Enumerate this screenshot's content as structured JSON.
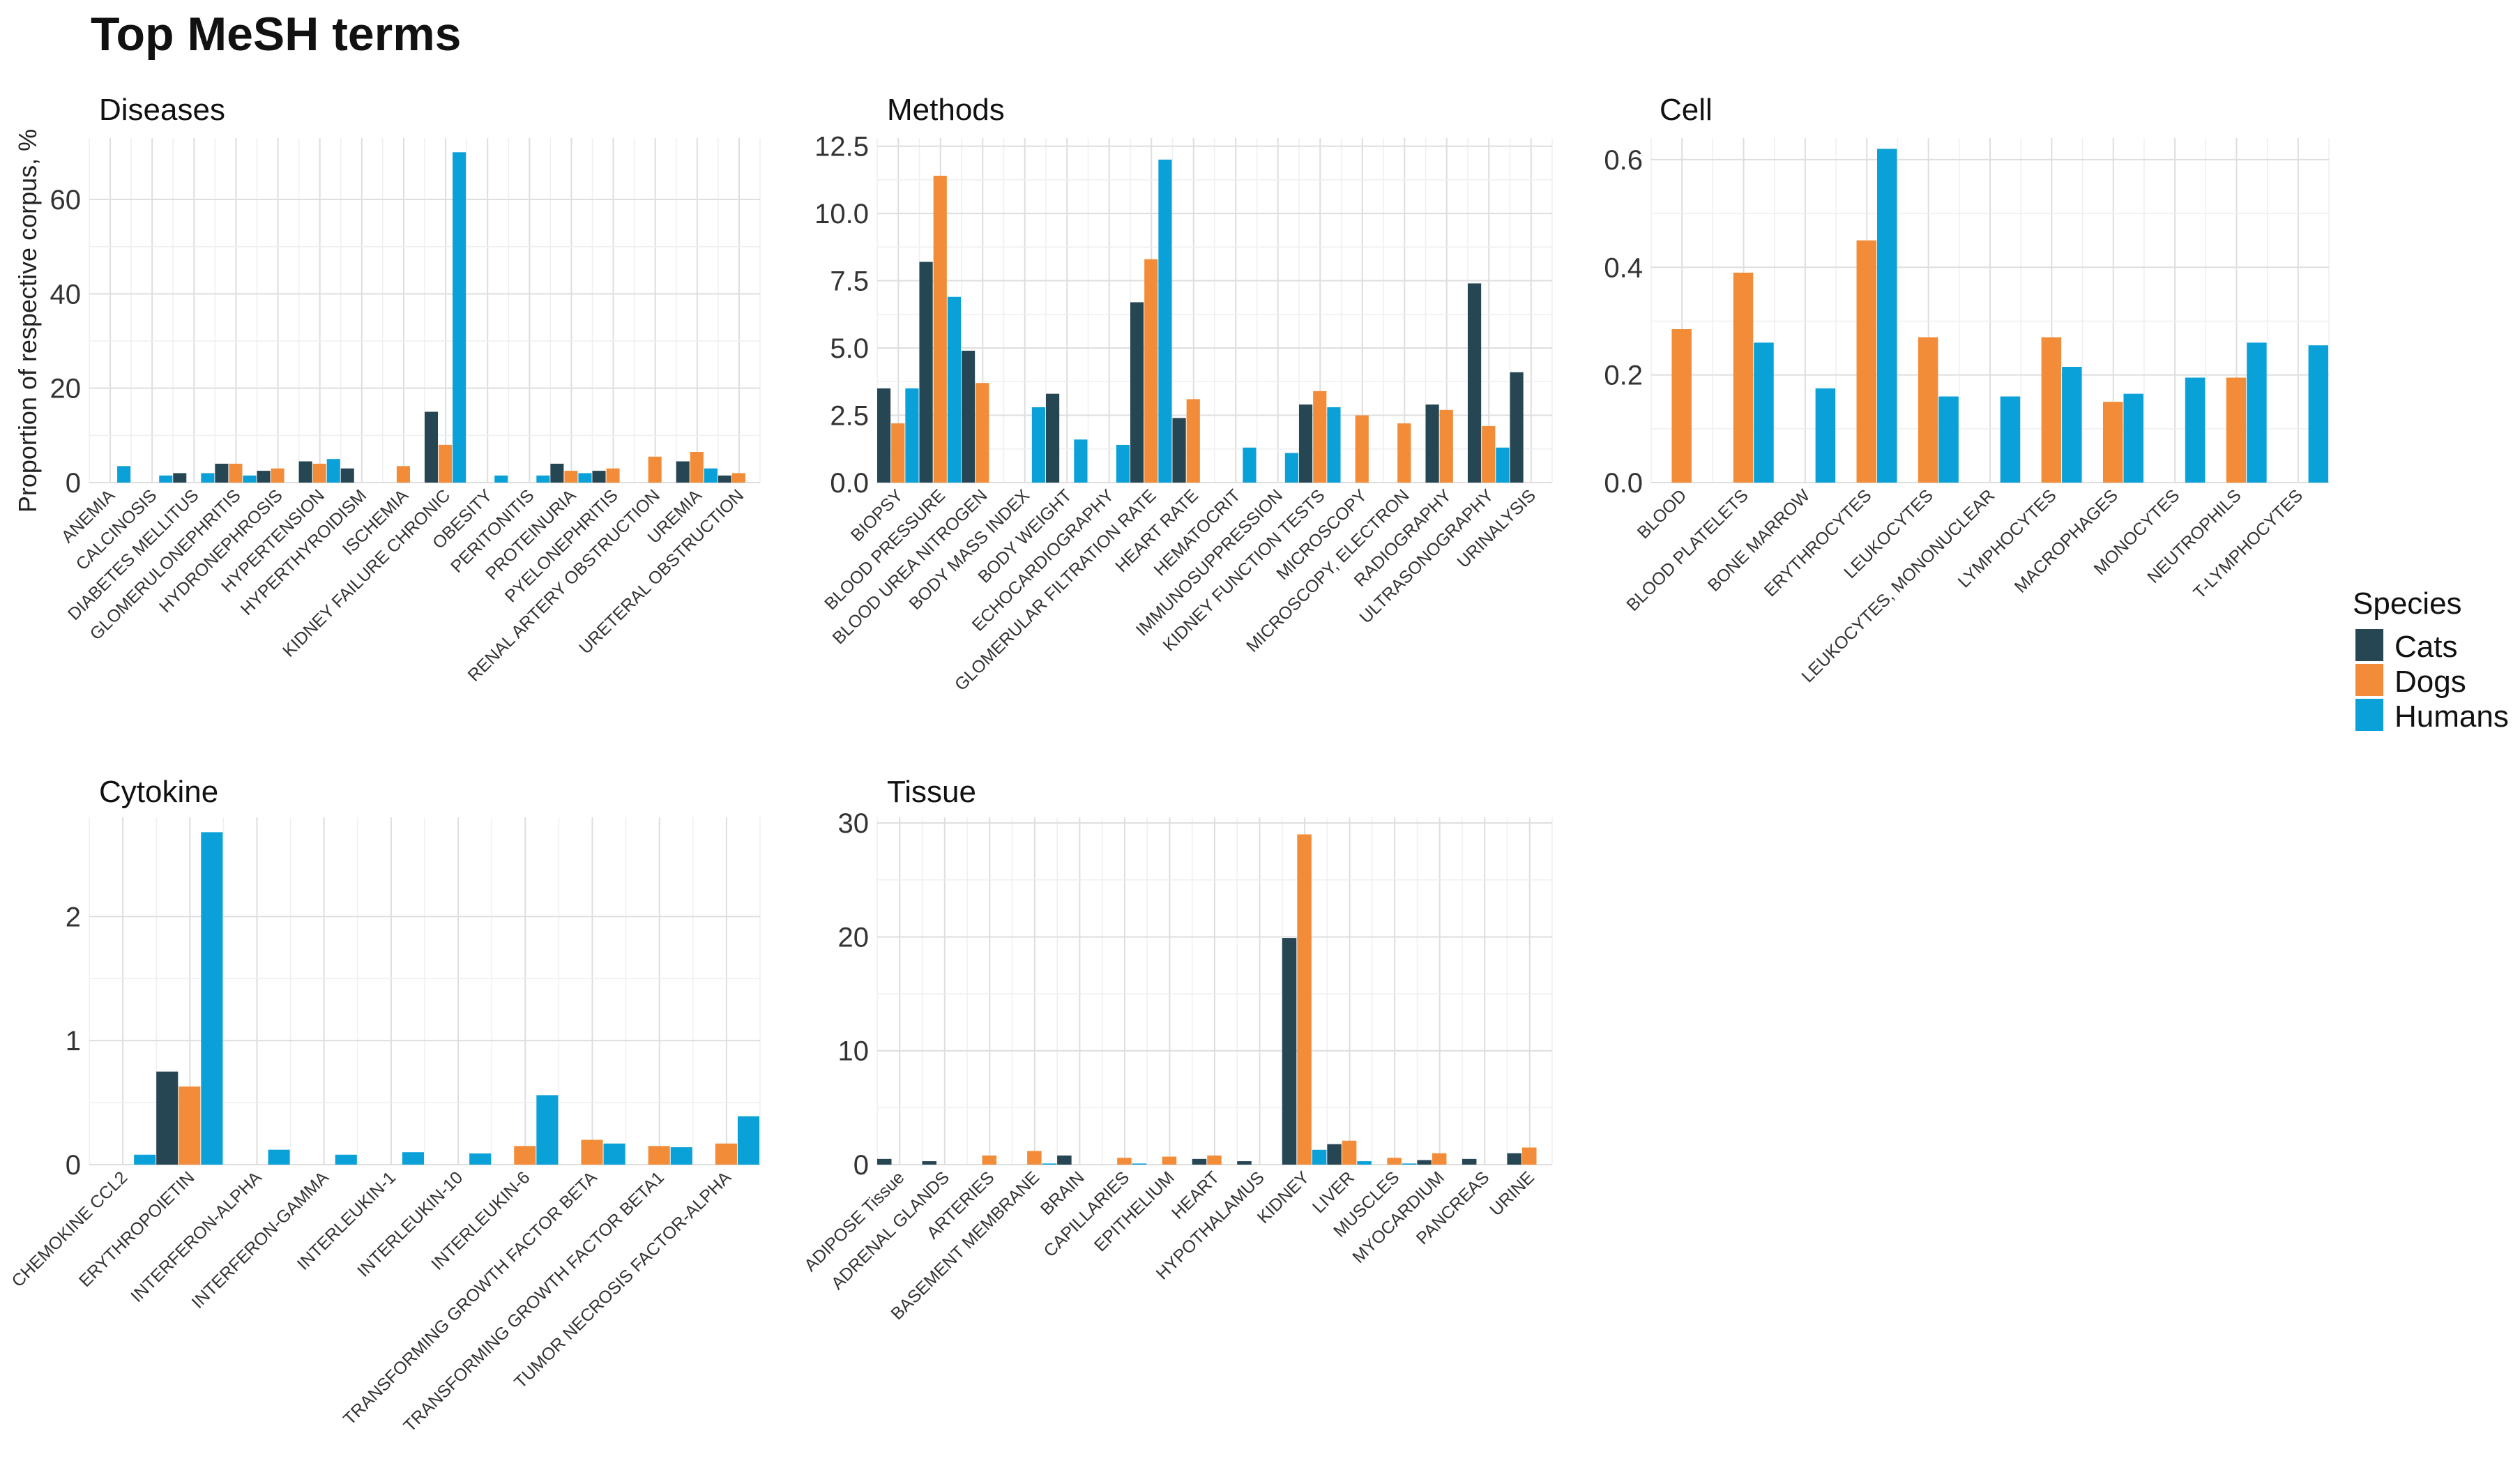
{
  "title": "Top MeSH terms",
  "ylabel": "Proportion of respective corpus, %",
  "legend": {
    "title": "Species",
    "items": [
      {
        "name": "Cats",
        "color": "#264653"
      },
      {
        "name": "Dogs",
        "color": "#F28C38"
      },
      {
        "name": "Humans",
        "color": "#0AA0D8"
      }
    ]
  },
  "chart_data": [
    {
      "type": "bar",
      "title": "Diseases",
      "ylim": [
        0,
        73
      ],
      "yticks": [
        0,
        20,
        40,
        60
      ],
      "series_names": [
        "Cats",
        "Dogs",
        "Humans"
      ],
      "categories": [
        "ANEMIA",
        "CALCINOSIS",
        "DIABETES MELLITUS",
        "GLOMERULONEPHRITIS",
        "HYDRONEPHROSIS",
        "HYPERTENSION",
        "HYPERTHYROIDISM",
        "ISCHEMIA",
        "KIDNEY FAILURE CHRONIC",
        "OBESITY",
        "PERITONITIS",
        "PROTEINURIA",
        "PYELONEPHRITIS",
        "RENAL ARTERY OBSTRUCTION",
        "UREMIA",
        "URETERAL OBSTRUCTION"
      ],
      "values": [
        [
          null,
          null,
          3.5
        ],
        [
          null,
          null,
          1.5
        ],
        [
          2,
          null,
          2
        ],
        [
          4,
          4,
          1.5
        ],
        [
          2.5,
          3,
          null
        ],
        [
          4.5,
          4,
          5
        ],
        [
          3,
          null,
          null
        ],
        [
          null,
          3.5,
          null
        ],
        [
          15,
          8,
          70
        ],
        [
          null,
          null,
          1.5
        ],
        [
          null,
          null,
          1.5
        ],
        [
          4,
          2.5,
          2
        ],
        [
          2.5,
          3,
          null
        ],
        [
          null,
          5.5,
          null
        ],
        [
          4.5,
          6.5,
          3
        ],
        [
          1.5,
          2,
          null
        ]
      ]
    },
    {
      "type": "bar",
      "title": "Methods",
      "ylim": [
        0,
        12.8
      ],
      "yticks": [
        0,
        2.5,
        5,
        7.5,
        10,
        12.5
      ],
      "ytick_labels": [
        "0.0",
        "2.5",
        "5.0",
        "7.5",
        "10.0",
        "12.5"
      ],
      "series_names": [
        "Cats",
        "Dogs",
        "Humans"
      ],
      "categories": [
        "BIOPSY",
        "BLOOD PRESSURE",
        "BLOOD UREA NITROGEN",
        "BODY MASS INDEX",
        "BODY WEIGHT",
        "ECHOCARDIOGRAPHY",
        "GLOMERULAR FILTRATION RATE",
        "HEART RATE",
        "HEMATOCRIT",
        "IMMUNOSUPPRESSION",
        "KIDNEY FUNCTION TESTS",
        "MICROSCOPY",
        "MICROSCOPY, ELECTRON",
        "RADIOGRAPHY",
        "ULTRASONOGRAPHY",
        "URINALYSIS"
      ],
      "values": [
        [
          3.5,
          2.2,
          3.5
        ],
        [
          8.2,
          11.4,
          6.9
        ],
        [
          4.9,
          3.7,
          null
        ],
        [
          null,
          null,
          2.8
        ],
        [
          3.3,
          null,
          1.6
        ],
        [
          null,
          null,
          1.4
        ],
        [
          6.7,
          8.3,
          12
        ],
        [
          2.4,
          3.1,
          null
        ],
        [
          null,
          null,
          1.3
        ],
        [
          null,
          null,
          1.1
        ],
        [
          2.9,
          3.4,
          2.8
        ],
        [
          null,
          2.5,
          null
        ],
        [
          null,
          2.2,
          null
        ],
        [
          2.9,
          2.7,
          null
        ],
        [
          7.4,
          2.1,
          1.3
        ],
        [
          4.1,
          null,
          null
        ]
      ]
    },
    {
      "type": "bar",
      "title": "Cell",
      "ylim": [
        0,
        0.64
      ],
      "yticks": [
        0,
        0.2,
        0.4,
        0.6
      ],
      "ytick_labels": [
        "0.0",
        "0.2",
        "0.4",
        "0.6"
      ],
      "series_names": [
        "Cats",
        "Dogs",
        "Humans"
      ],
      "categories": [
        "BLOOD",
        "BLOOD PLATELETS",
        "BONE MARROW",
        "ERYTHROCYTES",
        "LEUKOCYTES",
        "LEUKOCYTES, MONONUCLEAR",
        "LYMPHOCYTES",
        "MACROPHAGES",
        "MONOCYTES",
        "NEUTROPHILS",
        "T-LYMPHOCYTES"
      ],
      "values": [
        [
          null,
          0.285,
          null
        ],
        [
          null,
          0.39,
          0.26
        ],
        [
          null,
          null,
          0.175
        ],
        [
          null,
          0.45,
          0.62
        ],
        [
          null,
          0.27,
          0.16
        ],
        [
          null,
          null,
          0.16
        ],
        [
          null,
          0.27,
          0.215
        ],
        [
          null,
          0.15,
          0.165
        ],
        [
          null,
          null,
          0.195
        ],
        [
          null,
          0.195,
          0.26
        ],
        [
          null,
          null,
          0.255
        ]
      ]
    },
    {
      "type": "bar",
      "title": "Cytokine",
      "ylim": [
        0,
        2.8
      ],
      "yticks": [
        0,
        1,
        2
      ],
      "series_names": [
        "Cats",
        "Dogs",
        "Humans"
      ],
      "categories": [
        "CHEMOKINE CCL2",
        "ERYTHROPOIETIN",
        "INTERFERON-ALPHA",
        "INTERFERON-GAMMA",
        "INTERLEUKIN-1",
        "INTERLEUKIN-10",
        "INTERLEUKIN-6",
        "TRANSFORMING GROWTH FACTOR BETA",
        "TRANSFORMING GROWTH FACTOR BETA1",
        "TUMOR NECROSIS FACTOR-ALPHA"
      ],
      "values": [
        [
          null,
          null,
          0.08
        ],
        [
          0.75,
          0.63,
          2.68
        ],
        [
          null,
          null,
          0.12
        ],
        [
          null,
          null,
          0.08
        ],
        [
          null,
          null,
          0.1
        ],
        [
          null,
          null,
          0.09
        ],
        [
          null,
          0.15,
          0.56
        ],
        [
          null,
          0.2,
          0.17
        ],
        [
          null,
          0.15,
          0.14
        ],
        [
          null,
          0.17,
          0.39
        ]
      ]
    },
    {
      "type": "bar",
      "title": "Tissue",
      "ylim": [
        0,
        30.5
      ],
      "yticks": [
        0,
        10,
        20,
        30
      ],
      "series_names": [
        "Cats",
        "Dogs",
        "Humans"
      ],
      "categories": [
        "ADIPOSE Tissue",
        "ADRENAL GLANDS",
        "ARTERIES",
        "BASEMENT MEMBRANE",
        "BRAIN",
        "CAPILLARIES",
        "EPITHELIUM",
        "HEART",
        "HYPOTHALAMUS",
        "KIDNEY",
        "LIVER",
        "MUSCLES",
        "MYOCARDIUM",
        "PANCREAS",
        "URINE"
      ],
      "values": [
        [
          0.5,
          null,
          null
        ],
        [
          0.3,
          null,
          null
        ],
        [
          null,
          0.8,
          null
        ],
        [
          null,
          1.2,
          0.1
        ],
        [
          0.8,
          null,
          null
        ],
        [
          null,
          0.6,
          0.1
        ],
        [
          null,
          0.7,
          null
        ],
        [
          0.5,
          0.8,
          null
        ],
        [
          0.3,
          null,
          null
        ],
        [
          19.9,
          29,
          1.3
        ],
        [
          1.8,
          2.1,
          0.3
        ],
        [
          null,
          0.6,
          0.1
        ],
        [
          0.4,
          1,
          null
        ],
        [
          0.5,
          null,
          null
        ],
        [
          1,
          1.5,
          null
        ]
      ]
    }
  ]
}
